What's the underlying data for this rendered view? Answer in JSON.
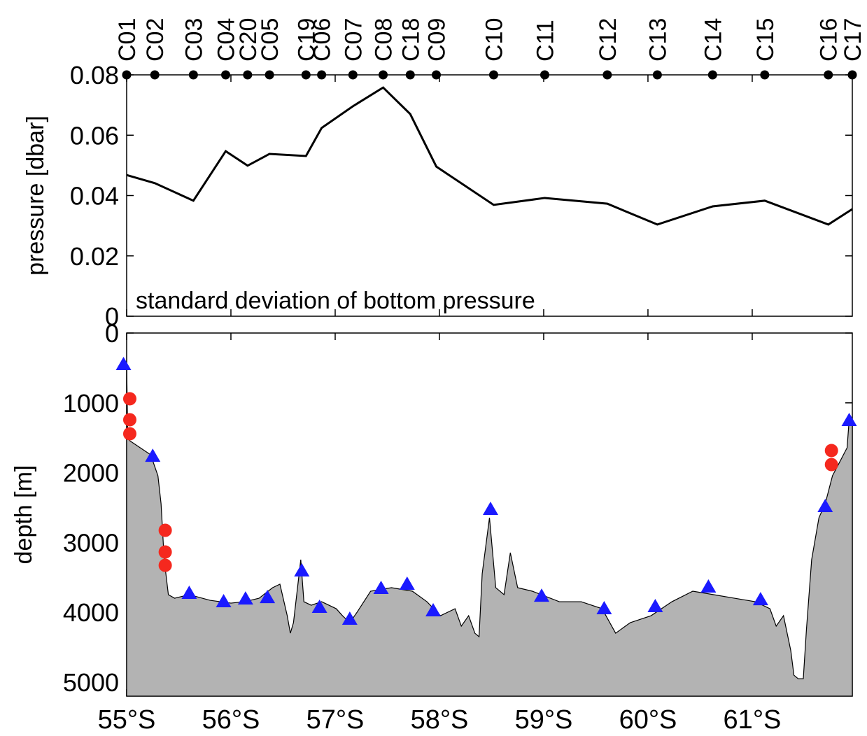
{
  "chart_data": [
    {
      "type": "line",
      "ylabel": "pressure [dbar]",
      "annotation": "standard deviation of bottom pressure",
      "x_labels": [
        "C01",
        "C02",
        "C03",
        "C04",
        "C20",
        "C05",
        "C19",
        "C06",
        "C07",
        "C08",
        "C18",
        "C09",
        "C10",
        "C11",
        "C12",
        "C13",
        "C14",
        "C15",
        "C16",
        "C17"
      ],
      "x": [
        55.0,
        55.27,
        55.64,
        55.95,
        56.16,
        56.37,
        56.72,
        56.87,
        57.17,
        57.46,
        57.72,
        57.97,
        58.52,
        59.01,
        59.61,
        60.09,
        60.62,
        61.12,
        61.73,
        61.96
      ],
      "series": [
        {
          "color": "#000000",
          "values": [
            0.0468,
            0.0441,
            0.0383,
            0.0547,
            0.0499,
            0.0538,
            0.0531,
            0.0624,
            0.0696,
            0.0758,
            0.067,
            0.0496,
            0.0369,
            0.0392,
            0.0373,
            0.0304,
            0.0364,
            0.0383,
            0.0304,
            0.0355
          ]
        }
      ],
      "xlim": [
        55,
        61.96
      ],
      "xticks": [
        55,
        56,
        57,
        58,
        59,
        60,
        61
      ],
      "ylim": [
        0,
        0.08
      ],
      "yticks": [
        0,
        0.02,
        0.04,
        0.06,
        0.08
      ]
    },
    {
      "type": "area",
      "ylabel": "depth [m]",
      "y_inverted": true,
      "xlim": [
        55,
        61.96
      ],
      "xticks": [
        {
          "value": 55,
          "label": "55°S"
        },
        {
          "value": 56,
          "label": "56°S"
        },
        {
          "value": 57,
          "label": "57°S"
        },
        {
          "value": 58,
          "label": "58°S"
        },
        {
          "value": 59,
          "label": "59°S"
        },
        {
          "value": 60,
          "label": "60°S"
        },
        {
          "value": 61,
          "label": "61°S"
        }
      ],
      "ylim": [
        0,
        5200
      ],
      "yticks": [
        0,
        1000,
        2000,
        3000,
        4000,
        5000
      ],
      "series": [
        {
          "type": "area",
          "color": "#b3b3b3",
          "x": [
            55.0,
            55.01,
            55.03,
            55.13,
            55.23,
            55.3,
            55.33,
            55.36,
            55.4,
            55.46,
            55.6,
            55.8,
            56.0,
            56.13,
            56.27,
            56.4,
            56.47,
            56.54,
            56.57,
            56.6,
            56.67,
            56.7,
            56.77,
            56.87,
            57.01,
            57.07,
            57.14,
            57.21,
            57.34,
            57.54,
            57.74,
            57.88,
            58.01,
            58.15,
            58.21,
            58.28,
            58.34,
            58.38,
            58.41,
            58.48,
            58.54,
            58.62,
            58.68,
            58.75,
            58.89,
            59.15,
            59.36,
            59.56,
            59.69,
            59.83,
            60.03,
            60.23,
            60.43,
            60.63,
            60.83,
            61.03,
            61.17,
            61.23,
            61.3,
            61.37,
            61.4,
            61.44,
            61.49,
            61.52,
            61.57,
            61.64,
            61.7,
            61.77,
            61.84,
            61.91,
            61.93,
            61.96
          ],
          "values": [
            441,
            1443,
            1543,
            1643,
            1743,
            2044,
            2445,
            3246,
            3747,
            3798,
            3747,
            3828,
            3868,
            3848,
            3798,
            3647,
            3597,
            4048,
            4299,
            4148,
            3246,
            3848,
            3898,
            3848,
            3948,
            4048,
            4148,
            3998,
            3697,
            3647,
            3697,
            3848,
            4048,
            3948,
            4198,
            4048,
            4299,
            4349,
            3447,
            2645,
            3647,
            3747,
            3146,
            3647,
            3697,
            3848,
            3848,
            3948,
            4299,
            4148,
            4048,
            3848,
            3697,
            3747,
            3798,
            3848,
            3948,
            4198,
            4048,
            4549,
            4900,
            4950,
            4950,
            4248,
            3246,
            2645,
            2445,
            2044,
            1844,
            1643,
            1242,
            1242
          ]
        },
        {
          "type": "scatter",
          "marker": "triangle",
          "color": "#1a1aff",
          "x": [
            54.97,
            55.25,
            55.6,
            55.93,
            56.14,
            56.35,
            56.68,
            56.85,
            57.14,
            57.44,
            57.69,
            57.94,
            58.49,
            58.98,
            59.58,
            60.07,
            60.58,
            61.08,
            61.7,
            61.93
          ],
          "values": [
            441,
            1754,
            3717,
            3838,
            3798,
            3778,
            3397,
            3918,
            4088,
            3647,
            3587,
            3968,
            2515,
            3758,
            3938,
            3908,
            3627,
            3808,
            2475,
            1242
          ]
        },
        {
          "type": "scatter",
          "marker": "circle",
          "color": "#f5281e",
          "x": [
            55.03,
            55.03,
            55.03,
            55.37,
            55.37,
            55.37,
            61.76,
            61.76
          ],
          "values": [
            942,
            1242,
            1443,
            2826,
            3136,
            3327,
            1683,
            1884
          ]
        }
      ]
    }
  ]
}
